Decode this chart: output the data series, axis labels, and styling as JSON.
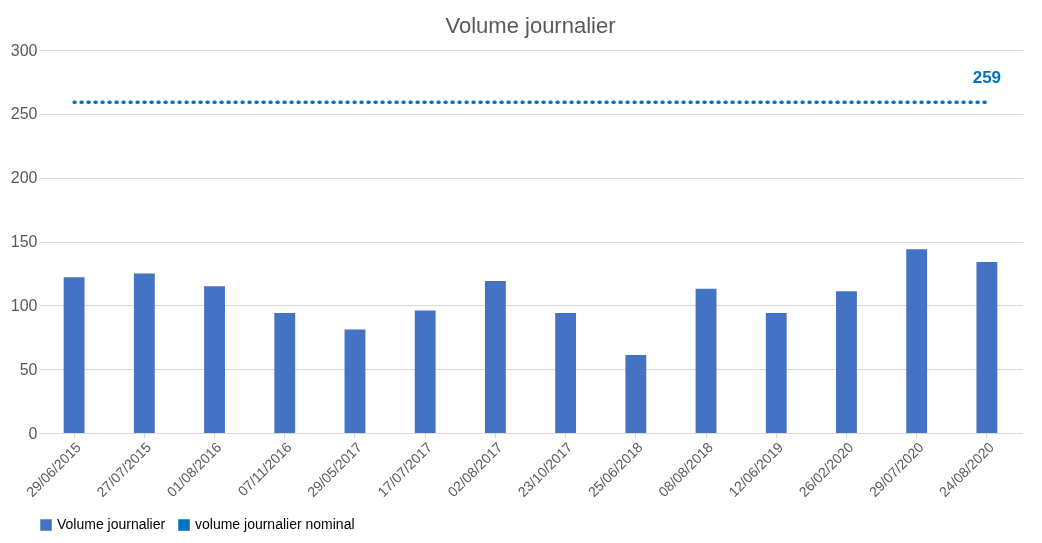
{
  "chart_data": {
    "type": "bar",
    "title": "Volume journalier",
    "categories": [
      "29/06/2015",
      "27/07/2015",
      "01/08/2016",
      "07/11/2016",
      "29/05/2017",
      "17/07/2017",
      "02/08/2017",
      "23/10/2017",
      "25/06/2018",
      "08/08/2018",
      "12/06/2019",
      "26/02/2020",
      "29/07/2020",
      "24/08/2020"
    ],
    "series": [
      {
        "name": "Volume journalier",
        "color": "#4472c4",
        "values": [
          122,
          125,
          115,
          94,
          81,
          96,
          119,
          94,
          61,
          113,
          94,
          111,
          144,
          134
        ]
      },
      {
        "name": "volume journalier nominal",
        "type": "line",
        "line_style": "dotted",
        "color": "#0070c0",
        "values": [
          259,
          259,
          259,
          259,
          259,
          259,
          259,
          259,
          259,
          259,
          259,
          259,
          259,
          259
        ],
        "value_labels": [
          null,
          null,
          null,
          null,
          null,
          null,
          null,
          null,
          null,
          null,
          null,
          null,
          null,
          "259"
        ]
      }
    ],
    "ylim": [
      0,
      300
    ],
    "yticks": [
      0,
      50,
      100,
      150,
      200,
      250,
      300
    ],
    "grid": "y",
    "legend": "bottom"
  }
}
